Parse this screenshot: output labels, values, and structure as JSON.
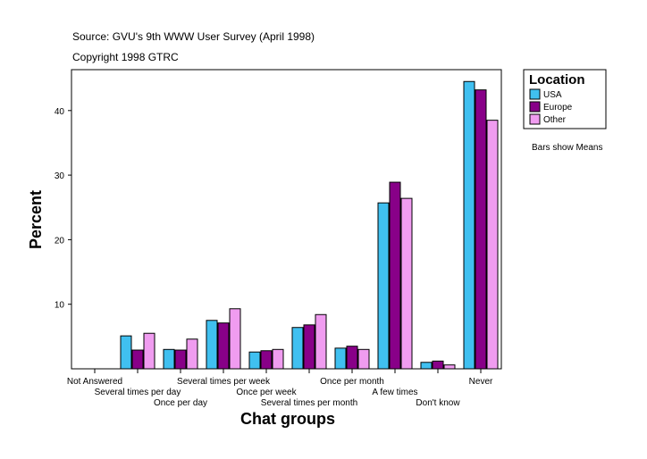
{
  "chart_data": {
    "type": "bar",
    "title": "Source: GVU's 9th WWW User Survey (April 1998)",
    "subtitle": "Copyright 1998 GTRC",
    "xlabel": "Chat groups",
    "ylabel": "Percent",
    "ylim": [
      0,
      46
    ],
    "yticks": [
      10,
      20,
      30,
      40
    ],
    "grid": false,
    "legend_position": "right",
    "legend_title": "Location",
    "note": "Bars show Means",
    "categories": [
      "Not Answered",
      "Several times per day",
      "Once per day",
      "Several times per week",
      "Once per week",
      "Several times per month",
      "Once per month",
      "A few times",
      "Don't know",
      "Never"
    ],
    "series": [
      {
        "name": "USA",
        "color": "#40c0f0",
        "values": [
          0,
          5.1,
          3.0,
          7.5,
          2.6,
          6.4,
          3.2,
          25.7,
          1.0,
          44.5
        ]
      },
      {
        "name": "Europe",
        "color": "#880088",
        "values": [
          0,
          2.9,
          2.9,
          7.1,
          2.8,
          6.8,
          3.5,
          28.9,
          1.2,
          43.2
        ]
      },
      {
        "name": "Other",
        "color": "#f09cf0",
        "values": [
          0,
          5.5,
          4.6,
          9.3,
          3.0,
          8.4,
          3.0,
          26.4,
          0.6,
          38.5
        ]
      }
    ]
  }
}
